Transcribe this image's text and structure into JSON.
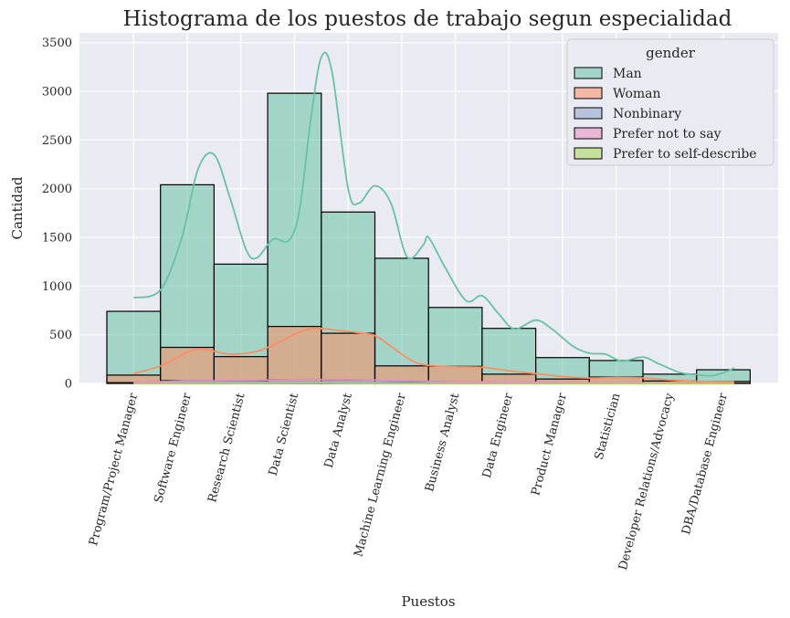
{
  "chart_data": {
    "type": "bar",
    "title": "Histograma de los puestos de trabajo segun especialidad",
    "xlabel": "Puestos",
    "ylabel": "Cantidad",
    "ylim": [
      0,
      3600
    ],
    "yticks": [
      0,
      500,
      1000,
      1500,
      2000,
      2500,
      3000,
      3500
    ],
    "grid": true,
    "stacked": false,
    "categories": [
      "Program/Project Manager",
      "Software Engineer",
      "Research Scientist",
      "Data Scientist",
      "Data Analyst",
      "Machine Learning Engineer",
      "Business Analyst",
      "Data Engineer",
      "Product Manager",
      "Statistician",
      "Developer Relations/Advocacy",
      "DBA/Database Engineer"
    ],
    "legend": {
      "title": "gender",
      "placement": "top-right"
    },
    "series": [
      {
        "name": "Man",
        "color": "#66c2a5",
        "values": [
          740,
          2040,
          1225,
          2980,
          1760,
          1285,
          780,
          565,
          265,
          235,
          95,
          140
        ],
        "kde": [
          [
            0.5,
            880
          ],
          [
            1.0,
            960
          ],
          [
            1.4,
            1500
          ],
          [
            1.7,
            2200
          ],
          [
            2.0,
            2350
          ],
          [
            2.3,
            1900
          ],
          [
            2.6,
            1370
          ],
          [
            2.8,
            1290
          ],
          [
            3.1,
            1480
          ],
          [
            3.4,
            1470
          ],
          [
            3.6,
            1800
          ],
          [
            3.8,
            2700
          ],
          [
            4.0,
            3350
          ],
          [
            4.2,
            3200
          ],
          [
            4.5,
            2000
          ],
          [
            4.7,
            1850
          ],
          [
            5.0,
            2030
          ],
          [
            5.3,
            1850
          ],
          [
            5.6,
            1300
          ],
          [
            5.9,
            1420
          ],
          [
            6.0,
            1500
          ],
          [
            6.3,
            1200
          ],
          [
            6.7,
            850
          ],
          [
            7.0,
            900
          ],
          [
            7.3,
            720
          ],
          [
            7.6,
            560
          ],
          [
            8.0,
            650
          ],
          [
            8.3,
            560
          ],
          [
            8.7,
            380
          ],
          [
            9.0,
            310
          ],
          [
            9.3,
            300
          ],
          [
            9.6,
            230
          ],
          [
            10.0,
            270
          ],
          [
            10.3,
            200
          ],
          [
            10.7,
            110
          ],
          [
            11.0,
            90
          ],
          [
            11.3,
            80
          ],
          [
            11.6,
            130
          ],
          [
            11.7,
            160
          ]
        ]
      },
      {
        "name": "Woman",
        "color": "#fc8d62",
        "values": [
          85,
          370,
          275,
          585,
          515,
          180,
          175,
          95,
          45,
          65,
          25,
          20
        ],
        "kde": [
          [
            0.5,
            100
          ],
          [
            1.0,
            180
          ],
          [
            1.5,
            320
          ],
          [
            1.8,
            350
          ],
          [
            2.3,
            300
          ],
          [
            2.8,
            330
          ],
          [
            3.2,
            420
          ],
          [
            3.6,
            530
          ],
          [
            3.9,
            565
          ],
          [
            4.3,
            545
          ],
          [
            4.7,
            520
          ],
          [
            5.0,
            490
          ],
          [
            5.3,
            380
          ],
          [
            5.7,
            230
          ],
          [
            6.0,
            185
          ],
          [
            6.5,
            170
          ],
          [
            7.0,
            165
          ],
          [
            7.5,
            130
          ],
          [
            8.0,
            100
          ],
          [
            8.5,
            70
          ],
          [
            9.0,
            55
          ],
          [
            9.5,
            60
          ],
          [
            10.0,
            55
          ],
          [
            10.5,
            35
          ],
          [
            11.0,
            22
          ],
          [
            11.5,
            18
          ],
          [
            11.7,
            18
          ]
        ]
      },
      {
        "name": "Nonbinary",
        "color": "#8da0cb",
        "values": [
          3,
          8,
          6,
          14,
          10,
          5,
          4,
          3,
          1,
          1,
          1,
          1
        ],
        "kde": [
          [
            0.5,
            3
          ],
          [
            2.0,
            8
          ],
          [
            4.0,
            14
          ],
          [
            5.0,
            10
          ],
          [
            7.0,
            4
          ],
          [
            9.0,
            1
          ],
          [
            11.7,
            1
          ]
        ]
      },
      {
        "name": "Prefer not to say",
        "color": "#e78ac3",
        "values": [
          10,
          30,
          25,
          40,
          35,
          15,
          15,
          10,
          5,
          5,
          2,
          2
        ],
        "kde": [
          [
            0.5,
            10
          ],
          [
            1.5,
            25
          ],
          [
            2.5,
            30
          ],
          [
            3.5,
            38
          ],
          [
            4.5,
            40
          ],
          [
            5.5,
            28
          ],
          [
            6.5,
            18
          ],
          [
            7.5,
            12
          ],
          [
            8.5,
            8
          ],
          [
            9.5,
            6
          ],
          [
            10.5,
            3
          ],
          [
            11.7,
            2
          ]
        ]
      },
      {
        "name": "Prefer to self-describe",
        "color": "#a6d854",
        "values": [
          1,
          3,
          2,
          5,
          3,
          2,
          1,
          1,
          0,
          0,
          0,
          0
        ],
        "kde": [
          [
            0.5,
            1
          ],
          [
            2.0,
            3
          ],
          [
            4.0,
            5
          ],
          [
            5.0,
            3
          ],
          [
            7.0,
            1
          ],
          [
            11.7,
            0
          ]
        ]
      }
    ]
  }
}
